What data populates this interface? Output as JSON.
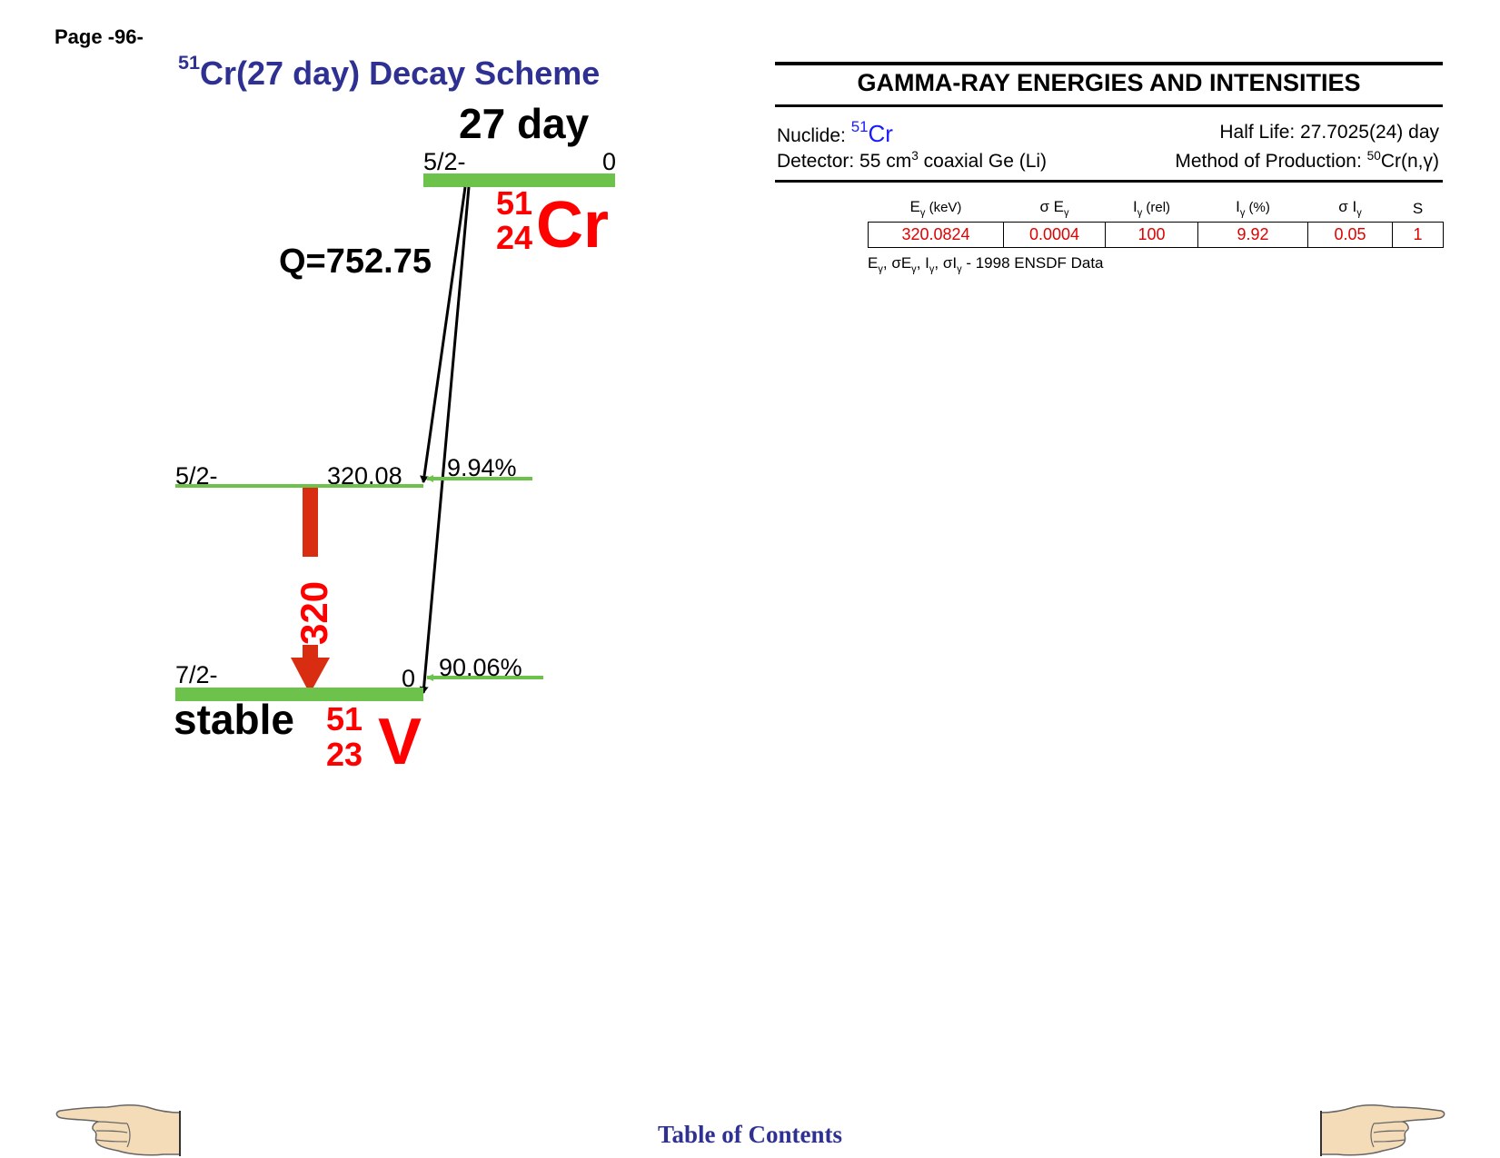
{
  "page": {
    "number_label": "Page -96-"
  },
  "scheme": {
    "title_mass": "51",
    "title_rest": "Cr(27 day) Decay Scheme",
    "parent_halflife": "27 day",
    "parent_spin": "5/2-",
    "parent_energy": "0",
    "parent_mass": "51",
    "parent_atomic": "24",
    "parent_symbol": "Cr",
    "q_value": "Q=752.75",
    "level1_spin": "5/2-",
    "level1_energy": "320.08",
    "level1_branch": "9.94%",
    "ground_spin": "7/2-",
    "ground_energy": "0",
    "ground_branch": "90.06%",
    "daughter_status": "stable",
    "daughter_mass": "51",
    "daughter_atomic": "23",
    "daughter_symbol": "V",
    "gamma_label": "320",
    "colors": {
      "level": "#6cc24a",
      "gamma": "#d92d12",
      "label_red": "#ff0000",
      "title_blue": "#2e3192"
    }
  },
  "panel": {
    "title": "GAMMA-RAY ENERGIES AND INTENSITIES",
    "nuclide_label": "Nuclide:",
    "nuclide_mass": "51",
    "nuclide_symbol": "Cr",
    "half_life": "Half Life: 27.7025(24) day",
    "detector_prefix": "Detector: 55 cm",
    "detector_exp": "3",
    "detector_suffix": " coaxial Ge (Li)",
    "method_prefix": "Method of Production: ",
    "method_mass": "50",
    "method_suffix": "Cr(n,γ)"
  },
  "table": {
    "headers": [
      {
        "main": "E",
        "sub": "γ",
        "tail": " (keV)"
      },
      {
        "main": "σ E",
        "sub": "γ",
        "tail": ""
      },
      {
        "main": "I",
        "sub": "γ",
        "tail": " (rel)"
      },
      {
        "main": "I",
        "sub": "γ",
        "tail": " (%)"
      },
      {
        "main": "σ I",
        "sub": "γ",
        "tail": ""
      },
      {
        "main": "S",
        "sub": "",
        "tail": ""
      }
    ],
    "rows": [
      [
        "320.0824",
        "0.0004",
        "100",
        "9.92",
        "0.05",
        "1"
      ]
    ],
    "footnote_source": "1998 ENSDF Data"
  },
  "footer": {
    "toc_label": "Table of Contents"
  }
}
